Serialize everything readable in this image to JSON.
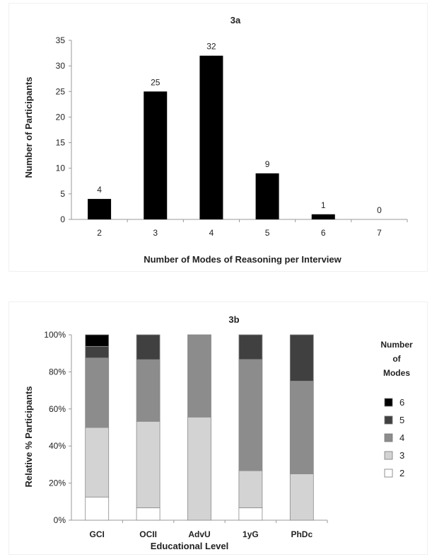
{
  "chart_data": [
    {
      "type": "bar",
      "title": "3a",
      "xlabel": "Number of Modes of Reasoning per Interview",
      "ylabel": "Number of  Participants",
      "categories": [
        "2",
        "3",
        "4",
        "5",
        "6",
        "7"
      ],
      "values": [
        4,
        25,
        32,
        9,
        1,
        0
      ],
      "data_labels": [
        "4",
        "25",
        "32",
        "9",
        "1",
        "0"
      ],
      "ylim": [
        0,
        35
      ],
      "yticks": [
        "0",
        "5",
        "10",
        "15",
        "20",
        "25",
        "30",
        "35"
      ],
      "grid": false,
      "bar_color": "#000000"
    },
    {
      "type": "bar",
      "stacked": true,
      "title": "3b",
      "xlabel": "Educational Level",
      "ylabel": "Relative % Participants",
      "categories": [
        "GCI",
        "OCII",
        "AdvU",
        "1yG",
        "PhDc"
      ],
      "ylim": [
        0,
        100
      ],
      "yticks": [
        "0%",
        "20%",
        "40%",
        "60%",
        "80%",
        "100%"
      ],
      "grid": false,
      "legend_title": [
        "Number",
        "of",
        "Modes"
      ],
      "legend_position": "right",
      "series": [
        {
          "name": "2",
          "color": "#ffffff",
          "values": [
            12.5,
            6.7,
            0,
            6.7,
            0
          ]
        },
        {
          "name": "3",
          "color": "#d3d3d3",
          "values": [
            37.5,
            46.6,
            55.6,
            20,
            25
          ]
        },
        {
          "name": "4",
          "color": "#8c8c8c",
          "values": [
            37.5,
            33.3,
            44.4,
            60,
            50
          ]
        },
        {
          "name": "5",
          "color": "#404040",
          "values": [
            6.25,
            13.4,
            0,
            13.3,
            25
          ]
        },
        {
          "name": "6",
          "color": "#000000",
          "values": [
            6.25,
            0,
            0,
            0,
            0
          ]
        }
      ],
      "legend_order": [
        "6",
        "5",
        "4",
        "3",
        "2"
      ]
    }
  ]
}
